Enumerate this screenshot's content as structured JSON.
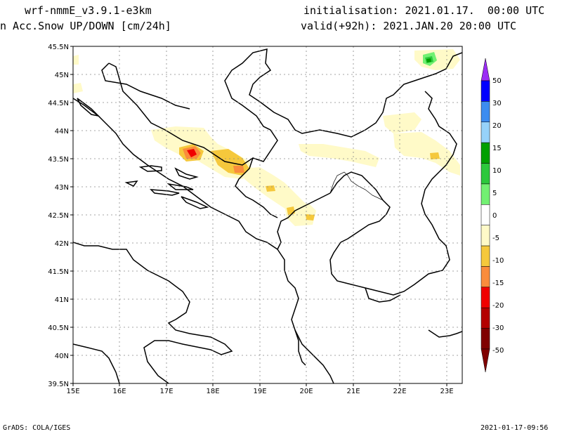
{
  "header": {
    "model": "wrf-nmmE_v3.9.1-e3km",
    "initialisation": "initialisation: 2021.01.17.  00:00 UTC",
    "variable": "n Acc.Snow UP/DOWN [cm/24h]",
    "valid": "valid(+92h): 2021.JAN.20 20:00 UTC"
  },
  "footer": {
    "credit": "GrADS: COLA/IGES",
    "timestamp": "2021-01-17-09:56"
  },
  "map": {
    "lon_labels": [
      "15E",
      "16E",
      "17E",
      "18E",
      "19E",
      "20E",
      "21E",
      "22E",
      "23E"
    ],
    "lat_labels": [
      "45.5N",
      "45N",
      "44.5N",
      "44N",
      "43.5N",
      "43N",
      "42.5N",
      "42N",
      "41.5N",
      "41N",
      "40.5N",
      "40N",
      "39.5N"
    ]
  },
  "colorbar": {
    "labels": [
      "50",
      "30",
      "20",
      "15",
      "10",
      "5",
      "0",
      "-5",
      "-10",
      "-15",
      "-20",
      "-30",
      "-50"
    ],
    "colors": [
      "#0000ff",
      "#3c8cf0",
      "#96d2fa",
      "#00a000",
      "#2cc83c",
      "#72f072",
      "#ffffff",
      "#fffac8",
      "#f5c83c",
      "#fa8c3c",
      "#f00000",
      "#b40000",
      "#800000"
    ],
    "top_color": "#9b2cf5",
    "bottom_color": "#800000"
  }
}
